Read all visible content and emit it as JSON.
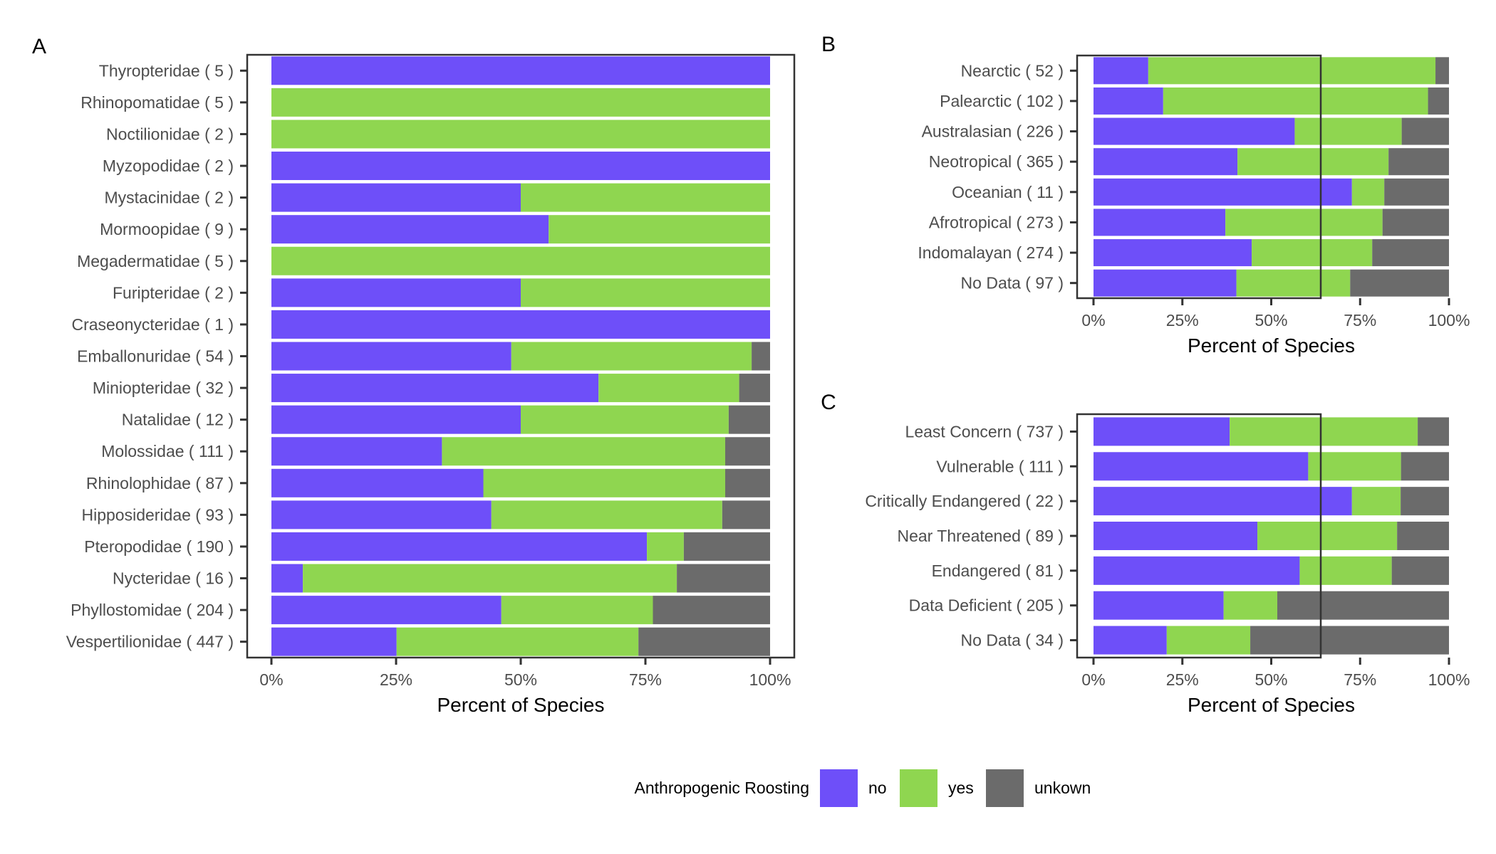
{
  "colors": {
    "no": "#6e4ff9",
    "yes": "#8fd650",
    "unkown": "#6b6b6b",
    "axis": "#333333",
    "text": "#4d4d4d",
    "title": "#000000"
  },
  "legend": {
    "title": "Anthropogenic Roosting",
    "items": [
      {
        "key": "no",
        "label": "no"
      },
      {
        "key": "yes",
        "label": "yes"
      },
      {
        "key": "unkown",
        "label": "unkown"
      }
    ]
  },
  "chart_data": [
    {
      "panel": "A",
      "type": "bar",
      "orientation": "horizontal",
      "stacked": true,
      "xlabel": "Percent of Species",
      "xlim": [
        0,
        100
      ],
      "xticks": [
        "0%",
        "25%",
        "50%",
        "75%",
        "100%"
      ],
      "categories": [
        "Thyropteridae ( 5 )",
        "Rhinopomatidae ( 5 )",
        "Noctilionidae ( 2 )",
        "Myzopodidae ( 2 )",
        "Mystacinidae ( 2 )",
        "Mormoopidae ( 9 )",
        "Megadermatidae ( 5 )",
        "Furipteridae ( 2 )",
        "Craseonycteridae ( 1 )",
        "Emballonuridae ( 54 )",
        "Miniopteridae ( 32 )",
        "Natalidae ( 12 )",
        "Molossidae ( 111 )",
        "Rhinolophidae ( 87 )",
        "Hipposideridae ( 93 )",
        "Pteropodidae ( 190 )",
        "Nycteridae ( 16 )",
        "Phyllostomidae ( 204 )",
        "Vespertilionidae ( 447 )"
      ],
      "series": [
        {
          "name": "no",
          "values": [
            100,
            0,
            0,
            100,
            50,
            55.6,
            0,
            50,
            100,
            48.1,
            65.6,
            50,
            34.2,
            42.5,
            44.1,
            75.3,
            6.3,
            46.1,
            25.1
          ]
        },
        {
          "name": "yes",
          "values": [
            0,
            100,
            100,
            0,
            50,
            44.4,
            100,
            50,
            0,
            48.2,
            28.2,
            41.7,
            56.8,
            48.5,
            46.3,
            7.4,
            75,
            30.4,
            48.5
          ]
        },
        {
          "name": "unkown",
          "values": [
            0,
            0,
            0,
            0,
            0,
            0,
            0,
            0,
            0,
            3.7,
            6.2,
            8.3,
            9,
            9,
            9.6,
            17.3,
            18.7,
            23.5,
            26.4
          ]
        }
      ]
    },
    {
      "panel": "B",
      "type": "bar",
      "orientation": "horizontal",
      "stacked": true,
      "xlabel": "Percent of Species",
      "xlim": [
        0,
        100
      ],
      "xticks": [
        "0%",
        "25%",
        "50%",
        "75%",
        "100%"
      ],
      "categories": [
        "Nearctic ( 52 )",
        "Palearctic ( 102 )",
        "Australasian ( 226 )",
        "Neotropical ( 365 )",
        "Oceanian ( 11 )",
        "Afrotropical ( 273 )",
        "Indomalayan ( 274 )",
        "No Data ( 97 )"
      ],
      "series": [
        {
          "name": "no",
          "values": [
            15.4,
            19.6,
            56.6,
            40.5,
            72.7,
            37.1,
            44.5,
            40.2
          ]
        },
        {
          "name": "yes",
          "values": [
            80.8,
            74.5,
            30.1,
            42.5,
            9.1,
            44.2,
            33.9,
            32.0
          ]
        },
        {
          "name": "unkown",
          "values": [
            3.8,
            5.9,
            13.3,
            17.0,
            18.2,
            18.7,
            21.6,
            27.8
          ]
        }
      ]
    },
    {
      "panel": "C",
      "type": "bar",
      "orientation": "horizontal",
      "stacked": true,
      "xlabel": "Percent of Species",
      "xlim": [
        0,
        100
      ],
      "xticks": [
        "0%",
        "25%",
        "50%",
        "75%",
        "100%"
      ],
      "categories": [
        "Least Concern ( 737 )",
        "Vulnerable ( 111 )",
        "Critically Endangered ( 22 )",
        "Near Threatened ( 89 )",
        "Endangered ( 81 )",
        "Data Deficient ( 205 )",
        "No Data ( 34 )"
      ],
      "series": [
        {
          "name": "no",
          "values": [
            38.3,
            60.4,
            72.7,
            46.1,
            58.0,
            36.6,
            20.6
          ]
        },
        {
          "name": "yes",
          "values": [
            52.9,
            26.1,
            13.7,
            39.3,
            25.9,
            15.1,
            23.5
          ]
        },
        {
          "name": "unkown",
          "values": [
            8.8,
            13.5,
            13.6,
            14.6,
            16.1,
            48.3,
            55.9
          ]
        }
      ]
    }
  ]
}
